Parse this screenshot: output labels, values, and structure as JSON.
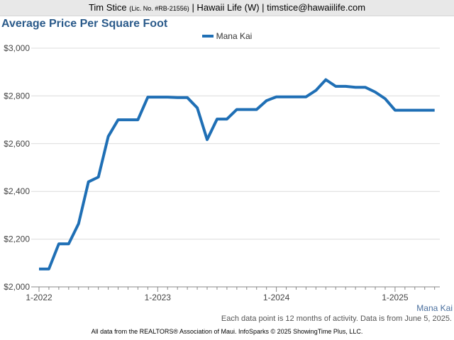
{
  "header": {
    "agent_name": "Tim Stice",
    "license": "(Lic. No. #RB-21556)",
    "rest": "| Hawaii Life (W) | timstice@hawaiilife.com"
  },
  "footer": {
    "series_label": "Mana Kai",
    "note": "Each data point is 12 months of activity. Data is from June 5, 2025.",
    "source": "All data from the REALTORS® Association of Maui. InfoSparks © 2025 ShowingTime Plus, LLC."
  },
  "chart_data": {
    "type": "line",
    "title": "Average Price Per Square Foot",
    "xlabel": "",
    "ylabel": "",
    "ylim": [
      2000,
      3000
    ],
    "yticks": [
      2000,
      2200,
      2400,
      2600,
      2800,
      3000
    ],
    "ytick_labels": [
      "$2,000",
      "$2,200",
      "$2,400",
      "$2,600",
      "$2,800",
      "$3,000"
    ],
    "xticks": [
      "2022-01",
      "2023-01",
      "2024-01",
      "2025-01"
    ],
    "xtick_labels": [
      "1-2022",
      "1-2023",
      "1-2024",
      "1-2025"
    ],
    "grid": true,
    "legend_position": "top-center",
    "series": [
      {
        "name": "Mana Kai",
        "color": "#1f6fb5",
        "x": [
          "2022-01",
          "2022-02",
          "2022-03",
          "2022-04",
          "2022-05",
          "2022-06",
          "2022-07",
          "2022-08",
          "2022-09",
          "2022-10",
          "2022-11",
          "2022-12",
          "2023-01",
          "2023-02",
          "2023-03",
          "2023-04",
          "2023-05",
          "2023-06",
          "2023-07",
          "2023-08",
          "2023-09",
          "2023-10",
          "2023-11",
          "2023-12",
          "2024-01",
          "2024-02",
          "2024-03",
          "2024-04",
          "2024-05",
          "2024-06",
          "2024-07",
          "2024-08",
          "2024-09",
          "2024-10",
          "2024-11",
          "2024-12",
          "2025-01",
          "2025-02",
          "2025-03",
          "2025-04",
          "2025-05"
        ],
        "values": [
          2075,
          2075,
          2180,
          2180,
          2265,
          2440,
          2460,
          2630,
          2700,
          2700,
          2700,
          2795,
          2795,
          2795,
          2793,
          2793,
          2750,
          2617,
          2703,
          2703,
          2743,
          2743,
          2743,
          2780,
          2796,
          2796,
          2796,
          2796,
          2823,
          2868,
          2840,
          2840,
          2836,
          2836,
          2816,
          2788,
          2740,
          2740,
          2740,
          2740,
          2740
        ]
      }
    ]
  }
}
